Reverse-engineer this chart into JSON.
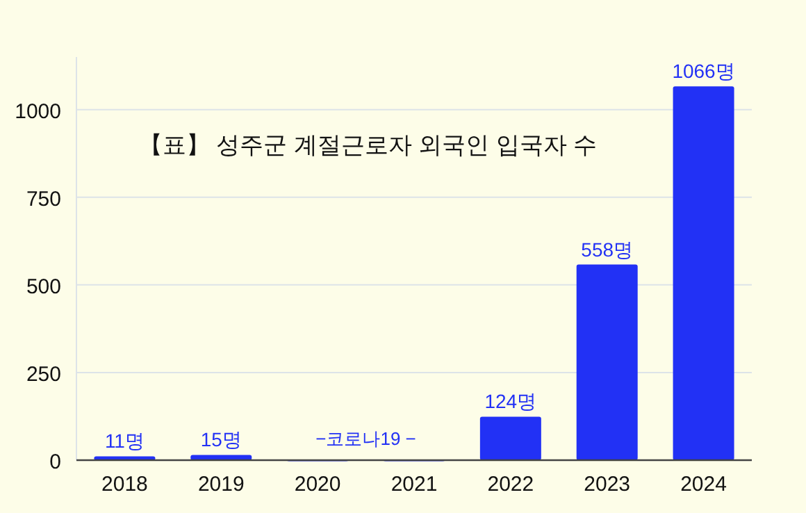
{
  "chart_data": {
    "type": "bar",
    "title": "【표】 성주군 계절근로자 외국인 입국자 수",
    "categories": [
      "2018",
      "2019",
      "2020",
      "2021",
      "2022",
      "2023",
      "2024"
    ],
    "values": [
      11,
      15,
      0,
      0,
      124,
      558,
      1066
    ],
    "value_labels": [
      "11명",
      "15명",
      null,
      null,
      "124명",
      "558명",
      "1066명"
    ],
    "color": "#2231f5",
    "ylim": [
      0,
      1150
    ],
    "yticks": [
      0,
      250,
      500,
      750,
      1000
    ],
    "grid": "y",
    "annotations": [
      "−코로나19 −"
    ]
  }
}
